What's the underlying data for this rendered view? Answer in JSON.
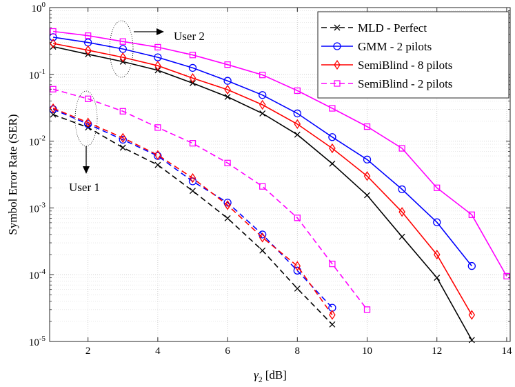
{
  "chart_data": {
    "type": "line",
    "title": "",
    "xlabel": "γ₂ [dB]",
    "xlabel_main": "γ",
    "xlabel_sub": "2",
    "xlabel_unit": "[dB]",
    "ylabel": "Symbol Error Rate (SER)",
    "yscale": "log",
    "xlim": [
      0.9,
      14.1
    ],
    "ylim": [
      1e-05,
      1
    ],
    "x_ticks": [
      2,
      4,
      6,
      8,
      10,
      12,
      14
    ],
    "x_tick_labels": [
      "2",
      "4",
      "6",
      "8",
      "10",
      "12",
      "14"
    ],
    "y_ticks": [
      {
        "value": 1,
        "base": "10",
        "exp": "0"
      },
      {
        "value": 0.1,
        "base": "10",
        "exp": "-1"
      },
      {
        "value": 0.01,
        "base": "10",
        "exp": "-2"
      },
      {
        "value": 0.001,
        "base": "10",
        "exp": "-3"
      },
      {
        "value": 0.0001,
        "base": "10",
        "exp": "-4"
      },
      {
        "value": 1e-05,
        "base": "10",
        "exp": "-5"
      }
    ],
    "grid": true,
    "legend_position": "top-right",
    "legend": [
      {
        "label": "MLD - Perfect",
        "color": "#000000",
        "marker": "x",
        "dash": "dashed"
      },
      {
        "label": "GMM - 2 pilots",
        "color": "#0000ff",
        "marker": "o",
        "dash": "solid"
      },
      {
        "label": "SemiBlind - 8 pilots",
        "color": "#ff0000",
        "marker": "d",
        "dash": "solid"
      },
      {
        "label": "SemiBlind - 2 pilots",
        "color": "#ff00ff",
        "marker": "s",
        "dash": "dashed"
      }
    ],
    "series": [
      {
        "name": "MLD - Perfect (User 2)",
        "color": "#000000",
        "marker": "x",
        "dash": "solid",
        "x": [
          1,
          2,
          3,
          4,
          5,
          6,
          7,
          8,
          9,
          10,
          11,
          12,
          13
        ],
        "values": [
          0.26,
          0.2,
          0.155,
          0.115,
          0.074,
          0.046,
          0.026,
          0.0125,
          0.0046,
          0.00155,
          0.00037,
          9e-05,
          1.05e-05
        ]
      },
      {
        "name": "GMM - 2 pilots (User 2)",
        "color": "#0000ff",
        "marker": "o",
        "dash": "solid",
        "x": [
          1,
          2,
          3,
          4,
          5,
          6,
          7,
          8,
          9,
          10,
          11,
          12,
          13
        ],
        "values": [
          0.36,
          0.3,
          0.24,
          0.18,
          0.125,
          0.08,
          0.049,
          0.026,
          0.0115,
          0.0053,
          0.0019,
          0.00061,
          0.000135
        ]
      },
      {
        "name": "SemiBlind - 8 pilots (User 2)",
        "color": "#ff0000",
        "marker": "d",
        "dash": "solid",
        "x": [
          1,
          2,
          3,
          4,
          5,
          6,
          7,
          8,
          9,
          10,
          11,
          12,
          13
        ],
        "values": [
          0.29,
          0.23,
          0.18,
          0.135,
          0.088,
          0.059,
          0.035,
          0.018,
          0.0078,
          0.003,
          0.00087,
          0.0002,
          2.5e-05
        ]
      },
      {
        "name": "SemiBlind - 2 pilots (User 2)",
        "color": "#ff00ff",
        "marker": "s",
        "dash": "solid",
        "x": [
          1,
          2,
          3,
          4,
          5,
          6,
          7,
          8,
          9,
          10,
          11,
          12,
          13,
          14
        ],
        "values": [
          0.44,
          0.38,
          0.31,
          0.255,
          0.195,
          0.14,
          0.098,
          0.057,
          0.031,
          0.0165,
          0.0078,
          0.002,
          0.00079,
          9.5e-05
        ]
      },
      {
        "name": "MLD - Perfect (User 1)",
        "color": "#000000",
        "marker": "x",
        "dash": "dashed",
        "x": [
          1,
          2,
          3,
          4,
          5,
          6,
          7,
          8,
          9
        ],
        "values": [
          0.025,
          0.016,
          0.008,
          0.0044,
          0.0018,
          0.0007,
          0.00023,
          6.2e-05,
          1.8e-05
        ]
      },
      {
        "name": "GMM - 2 pilots (User 1)",
        "color": "#0000ff",
        "marker": "o",
        "dash": "dashed",
        "x": [
          1,
          2,
          3,
          4,
          5,
          6,
          7,
          8,
          9
        ],
        "values": [
          0.03,
          0.018,
          0.0105,
          0.006,
          0.0025,
          0.0012,
          0.0004,
          0.000115,
          3.2e-05
        ]
      },
      {
        "name": "SemiBlind - 8 pilots (User 1)",
        "color": "#ff0000",
        "marker": "d",
        "dash": "dashed",
        "x": [
          1,
          2,
          3,
          4,
          5,
          6,
          7,
          8,
          9
        ],
        "values": [
          0.031,
          0.019,
          0.0112,
          0.0062,
          0.0028,
          0.0011,
          0.00036,
          0.000135,
          2.5e-05
        ]
      },
      {
        "name": "SemiBlind - 2 pilots (User 1)",
        "color": "#ff00ff",
        "marker": "s",
        "dash": "dashed",
        "x": [
          1,
          2,
          3,
          4,
          5,
          6,
          7,
          8,
          9,
          10
        ],
        "values": [
          0.06,
          0.043,
          0.028,
          0.016,
          0.0093,
          0.0047,
          0.0021,
          0.00071,
          0.000145,
          3e-05
        ]
      }
    ],
    "annotations": [
      {
        "label": "User 2",
        "group_x": 3,
        "group_y_range": [
          0.15,
          0.42
        ],
        "arrow": "right"
      },
      {
        "label": "User 1",
        "group_x": 2,
        "group_y_range": [
          0.014,
          0.06
        ],
        "arrow": "down"
      }
    ]
  }
}
